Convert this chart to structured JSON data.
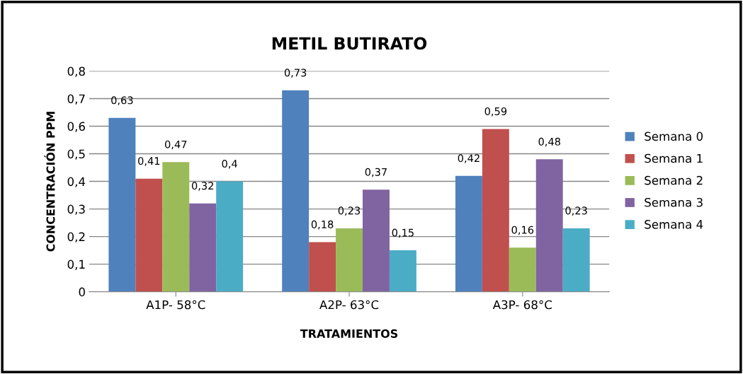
{
  "chart_data": {
    "type": "bar",
    "title": "METIL BUTIRATO",
    "xlabel": "TRATAMIENTOS",
    "ylabel": "CONCENTRACIÓN PPM",
    "categories": [
      "A1P- 58°C",
      "A2P- 63°C",
      "A3P- 68°C"
    ],
    "series": [
      {
        "name": "Semana 0",
        "color": "#4f81bd",
        "values": [
          0.63,
          0.73,
          0.42
        ],
        "value_labels": [
          "0,63",
          "0,73",
          "0,42"
        ]
      },
      {
        "name": "Semana 1",
        "color": "#c0504d",
        "values": [
          0.41,
          0.18,
          0.59
        ],
        "value_labels": [
          "0,41",
          "0,18",
          "0,59"
        ]
      },
      {
        "name": "Semana 2",
        "color": "#9bbb59",
        "values": [
          0.47,
          0.23,
          0.16
        ],
        "value_labels": [
          "0,47",
          "0,23",
          "0,16"
        ]
      },
      {
        "name": "Semana 3",
        "color": "#8064a2",
        "values": [
          0.32,
          0.37,
          0.48
        ],
        "value_labels": [
          "0,32",
          "0,37",
          "0,48"
        ]
      },
      {
        "name": "Semana 4",
        "color": "#4bacc6",
        "values": [
          0.4,
          0.15,
          0.23
        ],
        "value_labels": [
          "0,4",
          "0,15",
          "0,23"
        ]
      }
    ],
    "ylim": [
      0,
      0.8
    ],
    "yticks": [
      0,
      {
        "value": 0.1,
        "label": "0,1"
      },
      {
        "value": 0.2,
        "label": "0,2"
      },
      {
        "value": 0.3,
        "label": "0,3"
      },
      {
        "value": 0.4,
        "label": "0,4"
      },
      {
        "value": 0.5,
        "label": "0,5"
      },
      {
        "value": 0.6,
        "label": "0,6"
      },
      {
        "value": 0.7,
        "label": "0,7"
      },
      {
        "value": 0.8,
        "label": "0,8"
      }
    ],
    "grid": "y",
    "legend": "right"
  }
}
